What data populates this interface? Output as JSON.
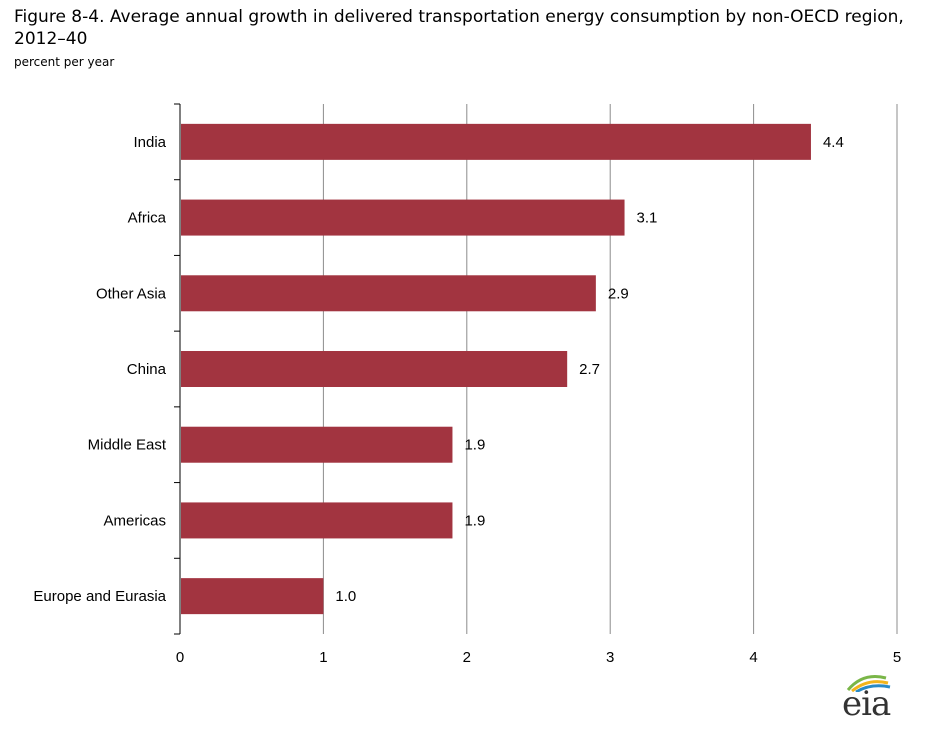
{
  "header": {
    "title": "Figure 8-4. Average annual growth in delivered transportation energy consumption by non-OECD region, 2012–40",
    "subtitle": "percent per year"
  },
  "logo": {
    "text": "eia",
    "icon": "eia-logo-icon"
  },
  "colors": {
    "bar": "#a23440",
    "grid": "#8c8c8c",
    "axis": "#000000"
  },
  "chart_data": {
    "type": "bar",
    "orientation": "horizontal",
    "categories": [
      "India",
      "Africa",
      "Other Asia",
      "China",
      "Middle East",
      "Americas",
      "Europe and Eurasia"
    ],
    "values": [
      4.4,
      3.1,
      2.9,
      2.7,
      1.9,
      1.9,
      1.0
    ],
    "data_labels": [
      "4.4",
      "3.1",
      "2.9",
      "2.7",
      "1.9",
      "1.9",
      "1.0"
    ],
    "xlim": [
      0,
      5
    ],
    "x_ticks": [
      0,
      1,
      2,
      3,
      4,
      5
    ],
    "x_tick_labels": [
      "0",
      "1",
      "2",
      "3",
      "4",
      "5"
    ],
    "grid": true,
    "legend": "none"
  }
}
